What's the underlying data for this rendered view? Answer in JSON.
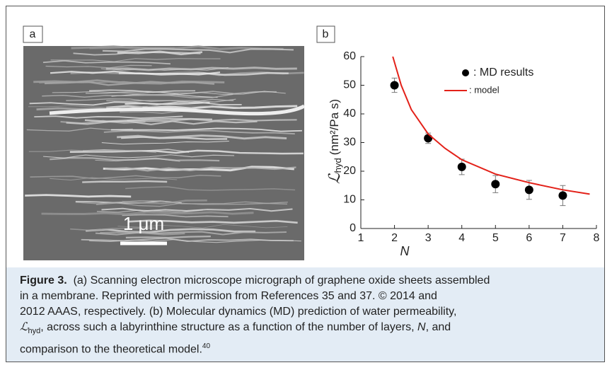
{
  "panel_a": {
    "label": "a",
    "scale_bar": "1 μm"
  },
  "chart_data": {
    "type": "scatter",
    "label": "b",
    "xlabel": "N",
    "ylabel": {
      "symbol": "ℒ",
      "subscript": "hyd",
      "unit": "(nm²/Pa s)"
    },
    "xlim": [
      1,
      8
    ],
    "xticks": [
      1,
      2,
      3,
      4,
      5,
      6,
      7,
      8
    ],
    "ylim": [
      0,
      60
    ],
    "yticks": [
      0,
      10,
      20,
      30,
      40,
      50,
      60
    ],
    "series": [
      {
        "name": ": MD results",
        "type": "scatter",
        "color": "#000000",
        "x": [
          2,
          3,
          4,
          5,
          6,
          7
        ],
        "values": [
          50,
          31.5,
          21.5,
          15.5,
          13.5,
          11.5
        ],
        "errors": [
          2.5,
          1.8,
          2.7,
          3,
          3.3,
          3.5
        ]
      },
      {
        "name": ": model",
        "type": "line",
        "color": "#e32119",
        "x": [
          1.95,
          2.2,
          2.5,
          3,
          3.5,
          4,
          5,
          6,
          7,
          7.8
        ],
        "values": [
          60,
          50,
          41.5,
          33,
          28,
          24,
          19,
          16,
          13.5,
          12
        ]
      }
    ]
  },
  "caption": {
    "label": "Figure 3.",
    "line1": "(a) Scanning electron microscope micrograph of graphene oxide sheets assembled",
    "line2": "in a membrane. Reprinted with permission from References 35 and 37. © 2014 and",
    "line3": "2012 AAAS, respectively. (b) Molecular dynamics (MD) prediction of water permeability,",
    "line4_symbol": "ℒ",
    "line4_sub": "hyd",
    "line4_text": ", across such a labyrinthine structure as a function of the number of layers, ",
    "line4_italic": "N",
    "line4_end": ", and",
    "line5": "comparison to the theoretical model.",
    "line5_sup": "40"
  }
}
